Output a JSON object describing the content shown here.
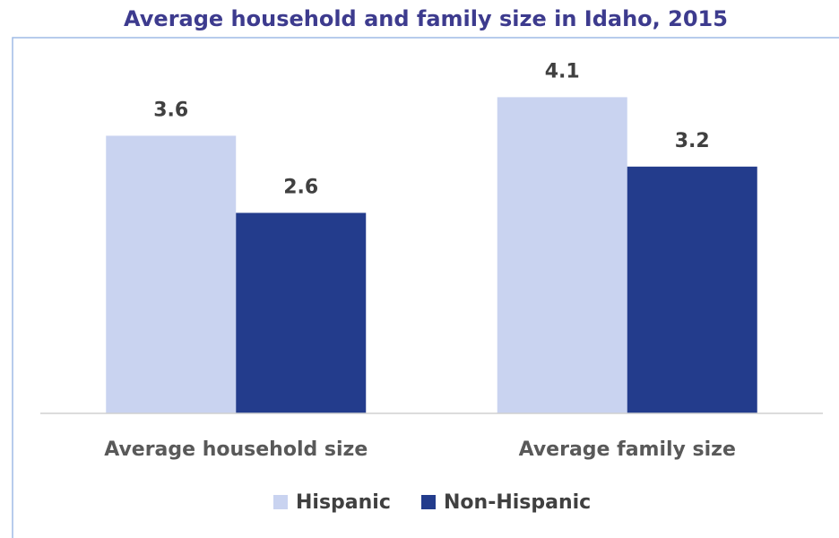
{
  "chart_data": {
    "type": "bar",
    "title": "Average household and family size in Idaho, 2015",
    "categories": [
      "Average household size",
      "Average family size"
    ],
    "series": [
      {
        "name": "Hispanic",
        "color": "#c9d3f0",
        "values": [
          3.6,
          4.1
        ]
      },
      {
        "name": "Non-Hispanic",
        "color": "#233c8c",
        "values": [
          2.6,
          3.2
        ]
      }
    ],
    "ylim": [
      0,
      4.5
    ],
    "legend": "bottom"
  }
}
